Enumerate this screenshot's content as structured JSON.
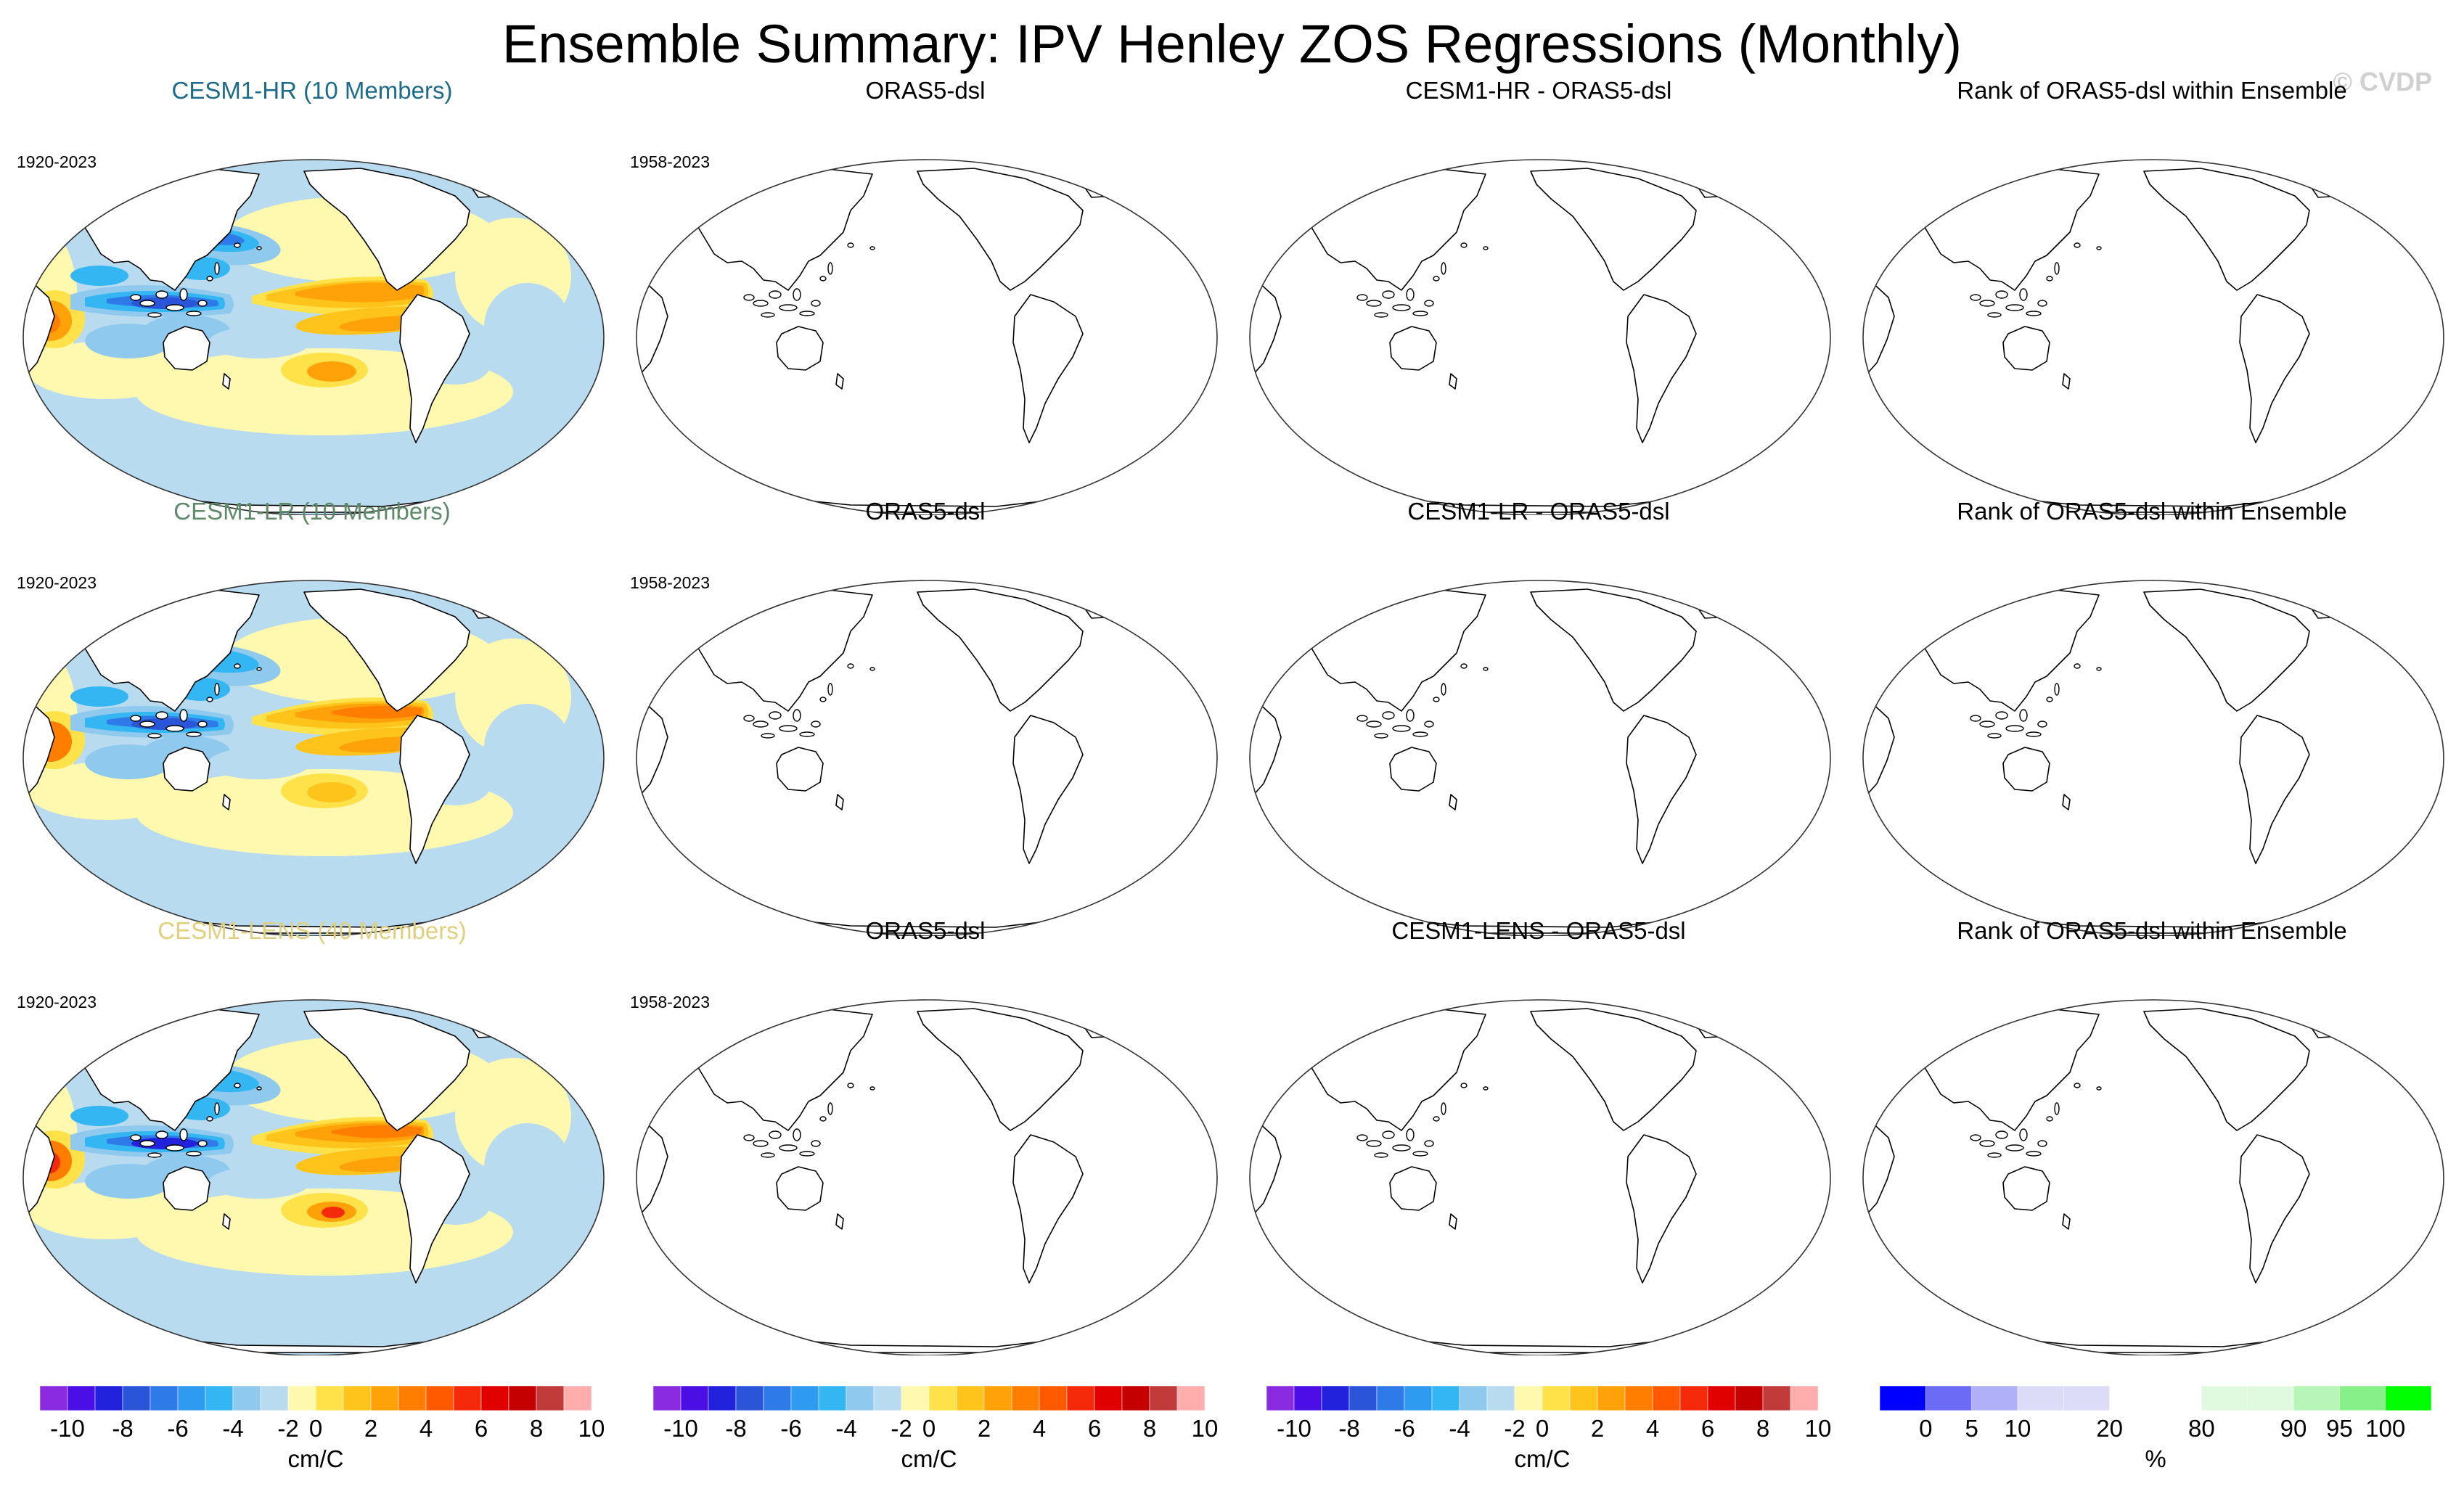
{
  "title": "Ensemble Summary: IPV Henley ZOS Regressions (Monthly)",
  "watermark": "© CVDP",
  "rows": [
    {
      "panels": [
        {
          "kind": "ensemble",
          "title": "CESM1-HR (10 Members)",
          "title_color": "#1d6b8a",
          "period": "1920-2023",
          "variant": "hr"
        },
        {
          "kind": "blank",
          "title": "ORAS5-dsl",
          "title_color": "#000000",
          "period": "1958-2023"
        },
        {
          "kind": "blank",
          "title": "CESM1-HR - ORAS5-dsl",
          "title_color": "#000000",
          "period": ""
        },
        {
          "kind": "blank",
          "title": "Rank of ORAS5-dsl within Ensemble",
          "title_color": "#000000",
          "period": ""
        }
      ]
    },
    {
      "panels": [
        {
          "kind": "ensemble",
          "title": "CESM1-LR (10 Members)",
          "title_color": "#5f8a6a",
          "period": "1920-2023",
          "variant": "lr"
        },
        {
          "kind": "blank",
          "title": "ORAS5-dsl",
          "title_color": "#000000",
          "period": "1958-2023"
        },
        {
          "kind": "blank",
          "title": "CESM1-LR - ORAS5-dsl",
          "title_color": "#000000",
          "period": ""
        },
        {
          "kind": "blank",
          "title": "Rank of ORAS5-dsl within Ensemble",
          "title_color": "#000000",
          "period": ""
        }
      ]
    },
    {
      "panels": [
        {
          "kind": "ensemble",
          "title": "CESM1-LENS (40 Members)",
          "title_color": "#e0cf7e",
          "period": "1920-2023",
          "variant": "lens"
        },
        {
          "kind": "blank",
          "title": "ORAS5-dsl",
          "title_color": "#000000",
          "period": "1958-2023"
        },
        {
          "kind": "blank",
          "title": "CESM1-LENS - ORAS5-dsl",
          "title_color": "#000000",
          "period": ""
        },
        {
          "kind": "blank",
          "title": "Rank of ORAS5-dsl within Ensemble",
          "title_color": "#000000",
          "period": ""
        }
      ]
    }
  ],
  "colorbars": [
    {
      "name": "zos-colorbar-1",
      "colors": [
        "#8a2be2",
        "#4b0fe6",
        "#2222dd",
        "#2a55d8",
        "#2e7ae8",
        "#2f9bf0",
        "#33b6f2",
        "#8fc9ee",
        "#b8dbf0",
        "#fff9b0",
        "#ffe24a",
        "#ffc41c",
        "#ffa20a",
        "#ff7e00",
        "#ff5a00",
        "#f52a0a",
        "#e00000",
        "#c40000",
        "#c23b3b",
        "#ffadad"
      ],
      "ticks": [
        "-10",
        "-8",
        "-6",
        "-4",
        "-2",
        "0",
        "2",
        "4",
        "6",
        "8",
        "10"
      ],
      "tick_positions": [
        2,
        4,
        6,
        8,
        10,
        11,
        13,
        15,
        17,
        19,
        21
      ],
      "unit": "cm/C"
    },
    {
      "name": "zos-colorbar-2",
      "colors": [
        "#8a2be2",
        "#4b0fe6",
        "#2222dd",
        "#2a55d8",
        "#2e7ae8",
        "#2f9bf0",
        "#33b6f2",
        "#8fc9ee",
        "#b8dbf0",
        "#fff9b0",
        "#ffe24a",
        "#ffc41c",
        "#ffa20a",
        "#ff7e00",
        "#ff5a00",
        "#f52a0a",
        "#e00000",
        "#c40000",
        "#c23b3b",
        "#ffadad"
      ],
      "ticks": [
        "-10",
        "-8",
        "-6",
        "-4",
        "-2",
        "0",
        "2",
        "4",
        "6",
        "8",
        "10"
      ],
      "tick_positions": [
        2,
        4,
        6,
        8,
        10,
        11,
        13,
        15,
        17,
        19,
        21
      ],
      "unit": "cm/C"
    },
    {
      "name": "zos-colorbar-3",
      "colors": [
        "#8a2be2",
        "#4b0fe6",
        "#2222dd",
        "#2a55d8",
        "#2e7ae8",
        "#2f9bf0",
        "#33b6f2",
        "#8fc9ee",
        "#b8dbf0",
        "#fff9b0",
        "#ffe24a",
        "#ffc41c",
        "#ffa20a",
        "#ff7e00",
        "#ff5a00",
        "#f52a0a",
        "#e00000",
        "#c40000",
        "#c23b3b",
        "#ffadad"
      ],
      "ticks": [
        "-10",
        "-8",
        "-6",
        "-4",
        "-2",
        "0",
        "2",
        "4",
        "6",
        "8",
        "10"
      ],
      "tick_positions": [
        2,
        4,
        6,
        8,
        10,
        11,
        13,
        15,
        17,
        19,
        21
      ],
      "unit": "cm/C"
    },
    {
      "name": "rank-colorbar",
      "colors": [
        "#0000ff",
        "#6b6bf5",
        "#b0b0f8",
        "#dcdcf8",
        "#dcdcf8",
        "#ffffff",
        "#ffffff",
        "#e0fae0",
        "#e0fae0",
        "#b8f5b8",
        "#88f088",
        "#00ff00"
      ],
      "ticks": [
        "0",
        "5",
        "10",
        "20",
        "80",
        "90",
        "95",
        "100"
      ],
      "tick_positions": [
        1,
        2,
        3,
        5,
        7,
        9,
        10,
        11
      ],
      "unit": "%"
    }
  ]
}
